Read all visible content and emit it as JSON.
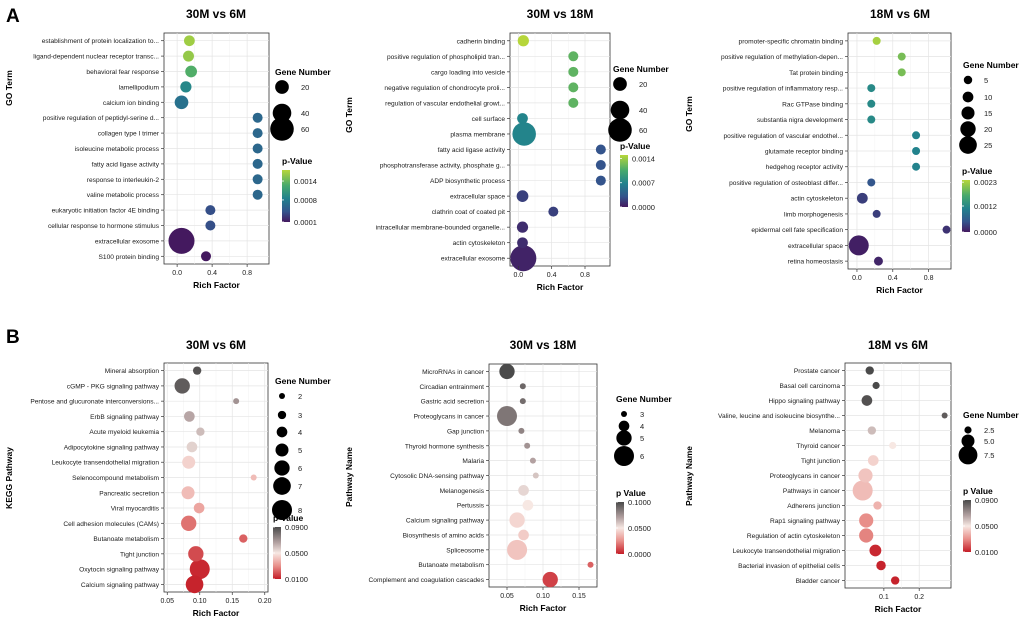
{
  "panel_labels": [
    "A",
    "B"
  ],
  "chart_data": [
    {
      "type": "scatter",
      "panel": "A",
      "title": "30M vs 6M",
      "xlabel": "Rich Factor",
      "ylabel": "GO Term",
      "xlim": [
        -0.15,
        1.05
      ],
      "xticks": [
        0.0,
        0.4,
        0.8
      ],
      "xtick_labels": [
        "0.0",
        "0.4",
        "0.8"
      ],
      "categories": [
        "establishment of protein localization to...",
        "ligand-dependent nuclear receptor transc...",
        "behavioral fear response",
        "lamellipodium",
        "calcium ion binding",
        "positive regulation of peptidyl-serine d...",
        "collagen type I trimer",
        "isoleucine metabolic process",
        "fatty acid ligase activity",
        "response to interleukin-2",
        "valine metabolic process",
        "eukaryotic initiation factor 4E binding",
        "cellular response to hormone stimulus",
        "extracellular exosome",
        "S100 protein binding"
      ],
      "x": [
        0.14,
        0.13,
        0.16,
        0.1,
        0.05,
        0.92,
        0.92,
        0.92,
        0.92,
        0.92,
        0.92,
        0.38,
        0.38,
        0.05,
        0.33
      ],
      "size": [
        8,
        9,
        12,
        10,
        20,
        5,
        5,
        5,
        5,
        5,
        5,
        5,
        5,
        70,
        5
      ],
      "pvalue": [
        0.00165,
        0.0016,
        0.0013,
        0.0009,
        0.0007,
        0.0006,
        0.0006,
        0.0006,
        0.0006,
        0.0006,
        0.0006,
        0.0004,
        0.0004,
        0.0001,
        0.0001
      ],
      "size_legend_title": "Gene Number",
      "size_legend_values": [
        20,
        40,
        60
      ],
      "size_legend_labels": [
        "20",
        "40",
        "60"
      ],
      "size_range": [
        5,
        70
      ],
      "color_legend_title": "p-Value",
      "color_range": [
        0.0001,
        0.00175
      ],
      "color_ticks": [
        0.0014,
        0.0008,
        0.0001
      ],
      "color_tick_labels": [
        "0.0014",
        "0.0008",
        "0.0001"
      ],
      "palette": "viridis"
    },
    {
      "type": "scatter",
      "panel": "A",
      "title": "30M vs 18M",
      "xlabel": "Rich Factor",
      "ylabel": "GO Term",
      "xlim": [
        -0.1,
        1.1
      ],
      "xticks": [
        0.0,
        0.4,
        0.8
      ],
      "xtick_labels": [
        "0.0",
        "0.4",
        "0.8"
      ],
      "categories": [
        "cadherin binding",
        "positive regulation of phospholipid tran...",
        "cargo loading into vesicle",
        "negative regulation of chondrocyte proli...",
        "regulation of vascular endothelial growt...",
        "cell surface",
        "plasma membrane",
        "fatty acid ligase activity",
        "phosphotransferase activity, phosphate g...",
        "ADP biosynthetic process",
        "extracellular space",
        "clathrin coat of coated pit",
        "intracellular membrane-bounded organelle...",
        "actin cytoskeleton",
        "extracellular exosome"
      ],
      "x": [
        0.06,
        0.66,
        0.66,
        0.66,
        0.66,
        0.05,
        0.07,
        0.99,
        0.99,
        0.99,
        0.05,
        0.42,
        0.05,
        0.05,
        0.06
      ],
      "size": [
        10,
        5,
        5,
        5,
        5,
        8,
        60,
        5,
        5,
        5,
        12,
        5,
        10,
        8,
        70
      ],
      "pvalue": [
        0.0015,
        0.00115,
        0.00115,
        0.00115,
        0.00115,
        0.0007,
        0.0007,
        0.0003,
        0.0003,
        0.0003,
        0.0002,
        0.0002,
        0.0001,
        0.0001,
        5e-05
      ],
      "size_legend_title": "Gene Number",
      "size_legend_values": [
        20,
        40,
        60
      ],
      "size_legend_labels": [
        "20",
        "40",
        "60"
      ],
      "size_range": [
        5,
        70
      ],
      "color_legend_title": "p-Value",
      "color_range": [
        0.0,
        0.0015
      ],
      "color_ticks": [
        0.0014,
        0.0007,
        0.0
      ],
      "color_tick_labels": [
        "0.0014",
        "0.0007",
        "0.0000"
      ],
      "palette": "viridis"
    },
    {
      "type": "scatter",
      "panel": "A",
      "title": "18M vs 6M",
      "xlabel": "Rich Factor",
      "ylabel": "GO Term",
      "xlim": [
        -0.1,
        1.05
      ],
      "xticks": [
        0.0,
        0.4,
        0.8
      ],
      "xtick_labels": [
        "0.0",
        "0.4",
        "0.8"
      ],
      "categories": [
        "promoter-specific chromatin binding",
        "positive regulation of methylation-depen...",
        "Tat protein binding",
        "positive regulation of inflammatory resp...",
        "Rac GTPase binding",
        "substantia nigra development",
        "positive regulation of vascular endothel...",
        "glutamate receptor binding",
        "hedgehog receptor activity",
        "positive regulation of osteoblast differ...",
        "actin cytoskeleton",
        "limb morphogenesis",
        "epidermal cell fate specification",
        "extracellular space",
        "retina homeostasis"
      ],
      "x": [
        0.22,
        0.5,
        0.5,
        0.16,
        0.16,
        0.16,
        0.66,
        0.66,
        0.66,
        0.16,
        0.06,
        0.22,
        1.0,
        0.02,
        0.24
      ],
      "size": [
        4,
        4,
        4,
        4,
        4,
        4,
        4,
        4,
        4,
        4,
        10,
        4,
        4,
        30,
        6
      ],
      "pvalue": [
        0.0023,
        0.002,
        0.002,
        0.0012,
        0.0012,
        0.0012,
        0.0011,
        0.0011,
        0.0011,
        0.0005,
        0.0003,
        0.0003,
        0.0002,
        5e-05,
        0.0001
      ],
      "size_legend_title": "Gene Number",
      "size_legend_values": [
        5,
        10,
        15,
        20,
        25
      ],
      "size_legend_labels": [
        "5",
        "10",
        "15",
        "20",
        "25"
      ],
      "size_range": [
        4,
        30
      ],
      "color_legend_title": "p-Value",
      "color_range": [
        0.0,
        0.0024
      ],
      "color_ticks": [
        0.0023,
        0.0012,
        0.0
      ],
      "color_tick_labels": [
        "0.0023",
        "0.0012",
        "0.0000"
      ],
      "palette": "viridis"
    },
    {
      "type": "scatter",
      "panel": "B",
      "title": "30M vs 6M",
      "xlabel": "Rich Factor",
      "ylabel": "KEGG Pathway",
      "xlim": [
        0.045,
        0.205
      ],
      "xticks": [
        0.05,
        0.1,
        0.15,
        0.2
      ],
      "xtick_labels": [
        "0.05",
        "0.10",
        "0.15",
        "0.20"
      ],
      "categories": [
        "Mineral absorption",
        "cGMP - PKG signaling pathway",
        "Pentose and glucuronate interconversions...",
        "ErbB signaling pathway",
        "Acute myeloid leukemia",
        "Adipocytokine signaling pathway",
        "Leukocyte transendothelial migration",
        "Selenocompound metabolism",
        "Pancreatic secretion",
        "Viral myocarditis",
        "Cell adhesion molecules (CAMs)",
        "Butanoate metabolism",
        "Tight junction",
        "Oxytocin signaling pathway",
        "Calcium signaling pathway"
      ],
      "x": [
        0.096,
        0.073,
        0.156,
        0.084,
        0.101,
        0.088,
        0.083,
        0.183,
        0.082,
        0.099,
        0.083,
        0.167,
        0.094,
        0.1,
        0.092
      ],
      "size": [
        3,
        6,
        2,
        4,
        3,
        4,
        5,
        2,
        5,
        4,
        6,
        3,
        6,
        8,
        7
      ],
      "pvalue": [
        0.088,
        0.085,
        0.07,
        0.065,
        0.06,
        0.055,
        0.045,
        0.04,
        0.04,
        0.035,
        0.025,
        0.022,
        0.018,
        0.012,
        0.011
      ],
      "size_legend_title": "Gene Number",
      "size_legend_values": [
        2,
        3,
        4,
        5,
        6,
        7,
        8
      ],
      "size_legend_labels": [
        "2",
        "3",
        "4",
        "5",
        "6",
        "7",
        "8"
      ],
      "size_range": [
        2,
        8
      ],
      "color_legend_title": "p-Value",
      "color_range": [
        0.01,
        0.09
      ],
      "color_ticks": [
        0.09,
        0.05,
        0.01
      ],
      "color_tick_labels": [
        "0.0900",
        "0.0500",
        "0.0100"
      ],
      "palette": "red-grey"
    },
    {
      "type": "scatter",
      "panel": "B",
      "title": "30M vs 18M",
      "xlabel": "Rich Factor",
      "ylabel": "Pathway Name",
      "xlim": [
        0.025,
        0.175
      ],
      "xticks": [
        0.05,
        0.1,
        0.15
      ],
      "xtick_labels": [
        "0.05",
        "0.10",
        "0.15"
      ],
      "categories": [
        "MicroRNAs in cancer",
        "Circadian entrainment",
        "Gastric acid secretion",
        "Proteoglycans in cancer",
        "Gap junction",
        "Thyroid hormone synthesis",
        "Malaria",
        "Cytosolic DNA-sensing pathway",
        "Melanogenesis",
        "Pertussis",
        "Calcium signaling pathway",
        "Biosynthesis of amino acids",
        "Spliceosome",
        "Butanoate metabolism",
        "Complement and coagulation cascades"
      ],
      "x": [
        0.05,
        0.072,
        0.072,
        0.05,
        0.07,
        0.078,
        0.086,
        0.09,
        0.073,
        0.079,
        0.064,
        0.073,
        0.064,
        0.166,
        0.11
      ],
      "size": [
        5,
        3,
        3,
        6,
        3,
        3,
        3,
        3,
        4,
        4,
        5,
        4,
        6,
        3,
        5
      ],
      "pvalue": [
        0.1,
        0.09,
        0.088,
        0.085,
        0.08,
        0.075,
        0.07,
        0.06,
        0.055,
        0.05,
        0.045,
        0.042,
        0.04,
        0.015,
        0.008
      ],
      "size_legend_title": "Gene Number",
      "size_legend_values": [
        3,
        4,
        5,
        6
      ],
      "size_legend_labels": [
        "3",
        "4",
        "5",
        "6"
      ],
      "size_range": [
        3,
        6
      ],
      "color_legend_title": "p Value",
      "color_range": [
        0.0,
        0.1
      ],
      "color_ticks": [
        0.1,
        0.05,
        0.0
      ],
      "color_tick_labels": [
        "0.1000",
        "0.0500",
        "0.0000"
      ],
      "palette": "red-grey"
    },
    {
      "type": "scatter",
      "panel": "B",
      "title": "18M vs 6M",
      "xlabel": "Rich Factor",
      "ylabel": "Pathway Name",
      "xlim": [
        -0.01,
        0.29
      ],
      "xticks": [
        0.1,
        0.2
      ],
      "xtick_labels": [
        "0.1",
        "0.2"
      ],
      "categories": [
        "Prostate cancer",
        "Basal cell carcinoma",
        "Hippo signaling pathway",
        "Valine, leucine and isoleucine biosynthe...",
        "Melanoma",
        "Thyroid cancer",
        "Tight junction",
        "Proteoglycans in cancer",
        "Pathways in cancer",
        "Adherens junction",
        "Rap1 signaling pathway",
        "Regulation of actin cytoskeleton",
        "Leukocyte transendothelial migration",
        "Bacterial invasion of epithelial cells",
        "Bladder cancer"
      ],
      "x": [
        0.06,
        0.078,
        0.052,
        0.272,
        0.066,
        0.125,
        0.07,
        0.048,
        0.04,
        0.082,
        0.05,
        0.05,
        0.076,
        0.092,
        0.132
      ],
      "size": [
        3,
        2.5,
        4,
        2,
        3,
        2.5,
        4,
        5.5,
        8,
        3,
        5.5,
        5.5,
        4.5,
        3.5,
        3
      ],
      "pvalue": [
        0.09,
        0.09,
        0.088,
        0.085,
        0.06,
        0.05,
        0.045,
        0.042,
        0.04,
        0.038,
        0.03,
        0.028,
        0.012,
        0.011,
        0.011
      ],
      "size_legend_title": "Gene Number",
      "size_legend_values": [
        2.5,
        5.0,
        7.5
      ],
      "size_legend_labels": [
        "2.5",
        "5.0",
        "7.5"
      ],
      "size_range": [
        2,
        8
      ],
      "color_legend_title": "p Value",
      "color_range": [
        0.01,
        0.09
      ],
      "color_ticks": [
        0.09,
        0.05,
        0.01
      ],
      "color_tick_labels": [
        "0.0900",
        "0.0500",
        "0.0100"
      ],
      "palette": "red-grey"
    }
  ]
}
